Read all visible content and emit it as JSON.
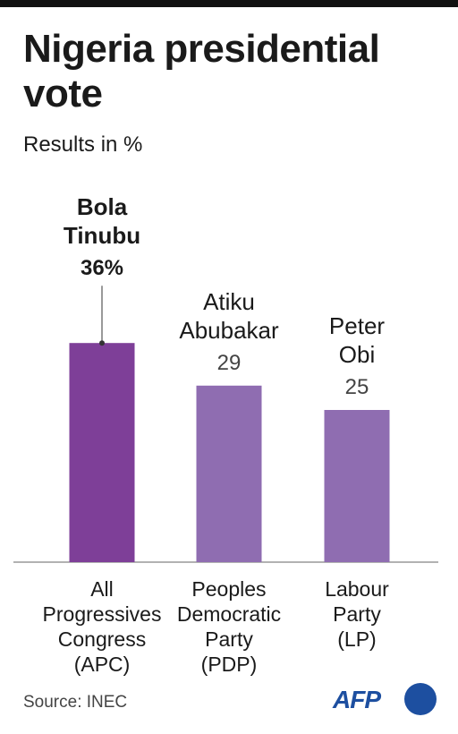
{
  "chart_data": {
    "type": "bar",
    "title": "Nigeria presidential vote",
    "subtitle": "Results in %",
    "categories": [
      "All Progressives Congress (APC)",
      "Peoples Democratic Party (PDP)",
      "Labour Party (LP)"
    ],
    "annotations": [
      "Bola Tinubu",
      "Atiku Abubakar",
      "Peter Obi"
    ],
    "values": [
      36,
      29,
      25
    ],
    "value_labels": [
      "36%",
      "29",
      "25"
    ],
    "colors": [
      "#7e3f98",
      "#8f6db1",
      "#8f6db1"
    ],
    "source": "Source: INEC",
    "logo": "AFP"
  }
}
